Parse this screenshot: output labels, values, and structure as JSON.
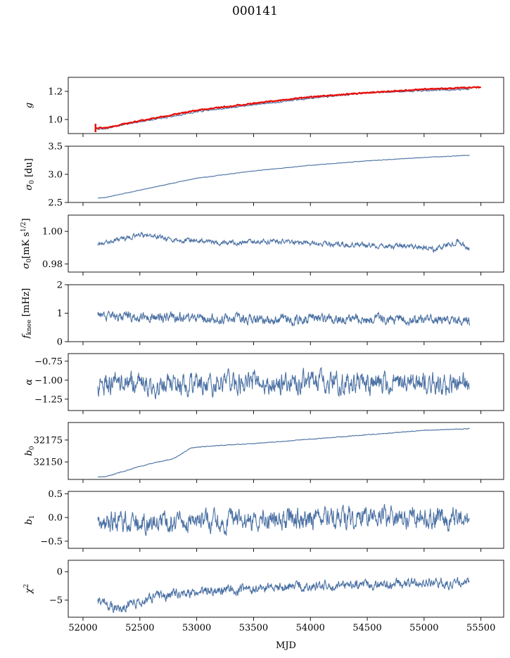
{
  "figure": {
    "title": "000141",
    "xlabel": "MJD"
  },
  "colors": {
    "series": "#4c72a4",
    "fit": "#e8100d",
    "axes": "#000000"
  },
  "chart_data": [
    {
      "type": "line",
      "panel": "g",
      "ylabel": "g",
      "ylim": [
        0.9,
        1.3
      ],
      "yticks": [
        1.0,
        1.2
      ],
      "ytick_labels": [
        "1.0",
        "1.2"
      ],
      "series": [
        {
          "kind": "data",
          "trend": [
            [
              52130,
              0.93
            ],
            [
              52200,
              0.935
            ],
            [
              52400,
              0.97
            ],
            [
              52700,
              1.01
            ],
            [
              53000,
              1.055
            ],
            [
              53500,
              1.105
            ],
            [
              54000,
              1.15
            ],
            [
              54500,
              1.19
            ],
            [
              55000,
              1.205
            ],
            [
              55400,
              1.215
            ]
          ],
          "noise": 0.004
        },
        {
          "kind": "fit",
          "trend": [
            [
              52110,
              0.94
            ],
            [
              52200,
              0.94
            ],
            [
              52400,
              0.975
            ],
            [
              52700,
              1.02
            ],
            [
              53000,
              1.065
            ],
            [
              53500,
              1.115
            ],
            [
              54000,
              1.16
            ],
            [
              54500,
              1.19
            ],
            [
              55000,
              1.215
            ],
            [
              55500,
              1.23
            ]
          ],
          "noise": 0.003,
          "spike": [
            52110,
            0.91,
            0.97
          ]
        }
      ]
    },
    {
      "type": "line",
      "panel": "sigma0_du",
      "ylabel": "σ₀ [du]",
      "ylim": [
        2.5,
        3.5
      ],
      "yticks": [
        2.5,
        3.0,
        3.5
      ],
      "ytick_labels": [
        "2.5",
        "3.0",
        "3.5"
      ],
      "series": [
        {
          "kind": "data",
          "trend": [
            [
              52130,
              2.58
            ],
            [
              52200,
              2.59
            ],
            [
              52500,
              2.72
            ],
            [
              53000,
              2.93
            ],
            [
              53500,
              3.06
            ],
            [
              54000,
              3.16
            ],
            [
              54500,
              3.24
            ],
            [
              55000,
              3.3
            ],
            [
              55400,
              3.34
            ]
          ],
          "noise": 0.004
        }
      ]
    },
    {
      "type": "line",
      "panel": "sigma0_mK",
      "ylabel": "σ₀[mK s^1/2]",
      "ylim": [
        0.975,
        1.01
      ],
      "yticks": [
        0.98,
        1.0
      ],
      "ytick_labels": [
        "0.98",
        "1.00"
      ],
      "series": [
        {
          "kind": "data",
          "trend": [
            [
              52130,
              0.992
            ],
            [
              52500,
              0.998
            ],
            [
              52800,
              0.995
            ],
            [
              53200,
              0.993
            ],
            [
              53700,
              0.994
            ],
            [
              54200,
              0.992
            ],
            [
              54800,
              0.991
            ],
            [
              55100,
              0.989
            ],
            [
              55300,
              0.994
            ],
            [
              55400,
              0.989
            ]
          ],
          "noise": 0.0012
        }
      ]
    },
    {
      "type": "line",
      "panel": "fknee",
      "ylabel": "f_knee [mHz]",
      "ylim": [
        0,
        2
      ],
      "yticks": [
        0,
        1,
        2
      ],
      "ytick_labels": [
        "0",
        "1",
        "2"
      ],
      "series": [
        {
          "kind": "data",
          "trend": [
            [
              52130,
              0.9
            ],
            [
              52600,
              0.85
            ],
            [
              53500,
              0.8
            ],
            [
              54500,
              0.78
            ],
            [
              55400,
              0.75
            ]
          ],
          "noise": 0.14
        }
      ]
    },
    {
      "type": "line",
      "panel": "alpha",
      "ylabel": "α",
      "ylim": [
        -1.4,
        -0.65
      ],
      "yticks": [
        -1.25,
        -1.0,
        -0.75
      ],
      "ytick_labels": [
        "−1.25",
        "−1.00",
        "−0.75"
      ],
      "series": [
        {
          "kind": "data",
          "trend": [
            [
              52130,
              -1.05
            ],
            [
              53000,
              -1.05
            ],
            [
              54000,
              -1.03
            ],
            [
              55400,
              -1.04
            ]
          ],
          "noise": 0.11
        }
      ]
    },
    {
      "type": "line",
      "panel": "b0",
      "ylabel": "b₀",
      "ylim": [
        32130,
        32195
      ],
      "yticks": [
        32150,
        32175
      ],
      "ytick_labels": [
        "32150",
        "32175"
      ],
      "series": [
        {
          "kind": "data",
          "trend": [
            [
              52130,
              32133
            ],
            [
              52200,
              32133
            ],
            [
              52500,
              32145
            ],
            [
              52800,
              32154
            ],
            [
              52950,
              32166
            ],
            [
              53100,
              32168
            ],
            [
              53500,
              32171
            ],
            [
              54000,
              32176
            ],
            [
              54500,
              32181
            ],
            [
              55000,
              32186
            ],
            [
              55400,
              32188
            ]
          ],
          "noise": 0.3
        }
      ]
    },
    {
      "type": "line",
      "panel": "b1",
      "ylabel": "b₁",
      "ylim": [
        -0.65,
        0.55
      ],
      "yticks": [
        -0.5,
        0.0,
        0.5
      ],
      "ytick_labels": [
        "−0.5",
        "0.0",
        "0.5"
      ],
      "series": [
        {
          "kind": "data",
          "trend": [
            [
              52130,
              -0.1
            ],
            [
              53000,
              -0.07
            ],
            [
              54000,
              -0.02
            ],
            [
              55400,
              0.0
            ]
          ],
          "noise": 0.17
        }
      ]
    },
    {
      "type": "line",
      "panel": "chi2",
      "ylabel": "χ²",
      "ylim": [
        -8,
        2
      ],
      "yticks": [
        -5,
        0
      ],
      "ytick_labels": [
        "−5",
        "0"
      ],
      "series": [
        {
          "kind": "data",
          "trend": [
            [
              52130,
              -5.0
            ],
            [
              52300,
              -6.5
            ],
            [
              52600,
              -4.5
            ],
            [
              53000,
              -3.5
            ],
            [
              53500,
              -3.0
            ],
            [
              54000,
              -2.5
            ],
            [
              54500,
              -2.3
            ],
            [
              55000,
              -2.0
            ],
            [
              55400,
              -2.0
            ]
          ],
          "noise": 0.7
        }
      ]
    }
  ],
  "xaxis": {
    "xlim": [
      51870,
      55700
    ],
    "ticks": [
      52000,
      52500,
      53000,
      53500,
      54000,
      54500,
      55000,
      55500
    ],
    "tick_labels": [
      "52000",
      "52500",
      "53000",
      "53500",
      "54000",
      "54500",
      "55000",
      "55500"
    ]
  }
}
